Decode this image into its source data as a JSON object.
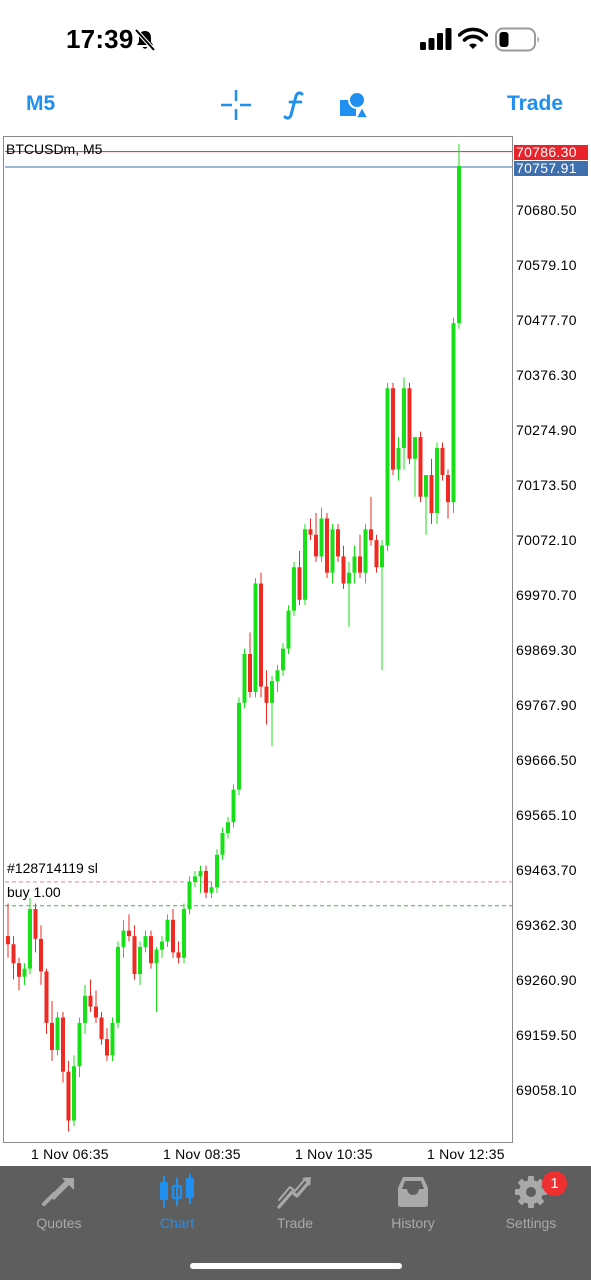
{
  "status_bar": {
    "time": "17:39"
  },
  "toolbar": {
    "timeframe": "M5",
    "trade": "Trade",
    "icons": [
      "crosshair-icon",
      "function-icon",
      "objects-icon"
    ],
    "accent": "#1f8ff0"
  },
  "chart": {
    "symbol_label": "BTCUSDm, M5",
    "ask_price": "70786.30",
    "bid_price": "70757.91",
    "sl_label": "#128714119 sl",
    "buy_label": "buy 1.00",
    "price_ticks": [
      "70680.50",
      "70579.10",
      "70477.70",
      "70376.30",
      "70274.90",
      "70173.50",
      "70072.10",
      "69970.70",
      "69869.30",
      "69767.90",
      "69666.50",
      "69565.10",
      "69463.70",
      "69362.30",
      "69260.90",
      "69159.50",
      "69058.10"
    ],
    "time_ticks": [
      "1 Nov 06:35",
      "1 Nov 08:35",
      "1 Nov 10:35",
      "1 Nov 12:35"
    ],
    "colors": {
      "bull": "#18e018",
      "bear": "#ee2a22",
      "ask": "#e8232b",
      "bid": "#3e6fae"
    }
  },
  "chart_data": {
    "type": "candlestick",
    "symbol": "BTCUSDm",
    "timeframe": "M5",
    "ylim": [
      69000,
      70820
    ],
    "ask": 70786.3,
    "bid": 70757.91,
    "sl_level": 69440,
    "buy_level": 69396,
    "candles": [
      [
        69340,
        69400,
        69300,
        69325
      ],
      [
        69325,
        69340,
        69260,
        69290
      ],
      [
        69290,
        69300,
        69240,
        69265
      ],
      [
        69265,
        69290,
        69250,
        69280
      ],
      [
        69280,
        69410,
        69270,
        69390
      ],
      [
        69390,
        69400,
        69310,
        69335
      ],
      [
        69335,
        69360,
        69250,
        69275
      ],
      [
        69275,
        69280,
        69160,
        69180
      ],
      [
        69180,
        69220,
        69110,
        69130
      ],
      [
        69130,
        69200,
        69120,
        69190
      ],
      [
        69190,
        69200,
        69070,
        69090
      ],
      [
        69090,
        69110,
        68980,
        69000
      ],
      [
        69000,
        69120,
        68990,
        69100
      ],
      [
        69100,
        69190,
        69080,
        69180
      ],
      [
        69180,
        69250,
        69160,
        69230
      ],
      [
        69230,
        69260,
        69200,
        69210
      ],
      [
        69210,
        69240,
        69180,
        69190
      ],
      [
        69190,
        69200,
        69140,
        69150
      ],
      [
        69150,
        69170,
        69110,
        69120
      ],
      [
        69120,
        69190,
        69110,
        69180
      ],
      [
        69180,
        69330,
        69170,
        69320
      ],
      [
        69320,
        69370,
        69300,
        69350
      ],
      [
        69350,
        69380,
        69330,
        69340
      ],
      [
        69340,
        69360,
        69260,
        69270
      ],
      [
        69270,
        69330,
        69250,
        69320
      ],
      [
        69320,
        69350,
        69310,
        69340
      ],
      [
        69340,
        69350,
        69280,
        69290
      ],
      [
        69290,
        69320,
        69200,
        69315
      ],
      [
        69315,
        69340,
        69300,
        69330
      ],
      [
        69330,
        69380,
        69320,
        69370
      ],
      [
        69370,
        69390,
        69300,
        69310
      ],
      [
        69310,
        69330,
        69290,
        69300
      ],
      [
        69300,
        69400,
        69290,
        69390
      ],
      [
        69390,
        69450,
        69380,
        69440
      ],
      [
        69440,
        69460,
        69430,
        69450
      ],
      [
        69450,
        69470,
        69420,
        69460
      ],
      [
        69460,
        69470,
        69410,
        69420
      ],
      [
        69420,
        69440,
        69410,
        69430
      ],
      [
        69430,
        69500,
        69420,
        69490
      ],
      [
        69490,
        69540,
        69480,
        69530
      ],
      [
        69530,
        69560,
        69520,
        69550
      ],
      [
        69550,
        69620,
        69540,
        69610
      ],
      [
        69610,
        69780,
        69600,
        69770
      ],
      [
        69770,
        69870,
        69760,
        69860
      ],
      [
        69860,
        69900,
        69780,
        69790
      ],
      [
        69790,
        70000,
        69780,
        69990
      ],
      [
        69990,
        70010,
        69780,
        69800
      ],
      [
        69800,
        69830,
        69730,
        69770
      ],
      [
        69770,
        69820,
        69690,
        69810
      ],
      [
        69810,
        69840,
        69790,
        69830
      ],
      [
        69830,
        69880,
        69820,
        69870
      ],
      [
        69870,
        69950,
        69860,
        69940
      ],
      [
        69940,
        70030,
        69930,
        70020
      ],
      [
        70020,
        70050,
        69950,
        69960
      ],
      [
        69960,
        70100,
        69950,
        70090
      ],
      [
        70090,
        70110,
        70070,
        70080
      ],
      [
        70080,
        70120,
        70030,
        70040
      ],
      [
        70040,
        70130,
        70030,
        70110
      ],
      [
        70110,
        70120,
        70000,
        70010
      ],
      [
        70010,
        70100,
        69990,
        70090
      ],
      [
        70090,
        70100,
        70030,
        70040
      ],
      [
        70040,
        70060,
        69980,
        69990
      ],
      [
        69990,
        70030,
        69910,
        70010
      ],
      [
        70010,
        70060,
        69990,
        70040
      ],
      [
        70040,
        70080,
        70000,
        70010
      ],
      [
        70010,
        70100,
        69990,
        70090
      ],
      [
        70090,
        70150,
        70060,
        70070
      ],
      [
        70070,
        70080,
        70010,
        70020
      ],
      [
        70020,
        70070,
        69830,
        70060
      ],
      [
        70060,
        70360,
        70050,
        70350
      ],
      [
        70350,
        70360,
        70190,
        70200
      ],
      [
        70200,
        70260,
        70180,
        70240
      ],
      [
        70240,
        70370,
        70200,
        70350
      ],
      [
        70350,
        70360,
        70210,
        70220
      ],
      [
        70220,
        70260,
        70150,
        70260
      ],
      [
        70260,
        70270,
        70140,
        70150
      ],
      [
        70150,
        70180,
        70080,
        70190
      ],
      [
        70190,
        70220,
        70100,
        70120
      ],
      [
        70120,
        70250,
        70100,
        70240
      ],
      [
        70240,
        70250,
        70180,
        70190
      ],
      [
        70190,
        70200,
        70110,
        70140
      ],
      [
        70140,
        70480,
        70120,
        70470
      ],
      [
        70470,
        70800,
        70460,
        70760
      ]
    ]
  },
  "tab_bar": {
    "tabs": [
      {
        "label": "Quotes",
        "icon": "quotes-icon"
      },
      {
        "label": "Chart",
        "icon": "chart-icon",
        "active": true
      },
      {
        "label": "Trade",
        "icon": "trade-icon"
      },
      {
        "label": "History",
        "icon": "history-icon"
      },
      {
        "label": "Settings",
        "icon": "settings-icon"
      }
    ],
    "settings_badge": "1"
  }
}
